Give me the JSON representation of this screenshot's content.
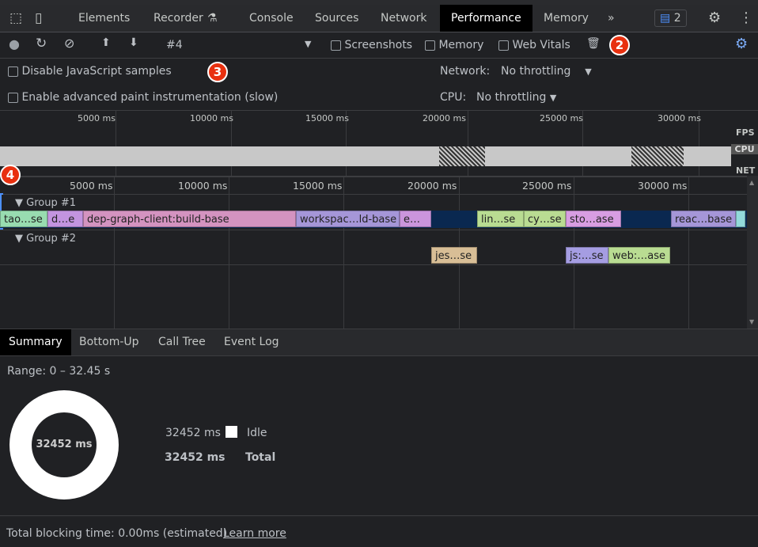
{
  "tabs": [
    "Elements",
    "Recorder",
    "Console",
    "Sources",
    "Network",
    "Performance",
    "Memory"
  ],
  "active_tab": "Performance",
  "issues_count": "2",
  "toolbar": {
    "recording": "#4",
    "screenshots": "Screenshots",
    "memory": "Memory",
    "web_vitals": "Web Vitals"
  },
  "settings": {
    "disable_js": "Disable JavaScript samples",
    "paint": "Enable advanced paint instrumentation (slow)",
    "network_label": "Network:",
    "network_value": "No throttling",
    "cpu_label": "CPU:",
    "cpu_value": "No throttling"
  },
  "badges": [
    "2",
    "3",
    "4"
  ],
  "overview": {
    "ticks": [
      "5000 ms",
      "10000 ms",
      "15000 ms",
      "20000 ms",
      "25000 ms",
      "30000 ms"
    ],
    "fps": "FPS",
    "cpu": "CPU",
    "net": "NET"
  },
  "timeline": {
    "ticks": [
      "5000 ms",
      "10000 ms",
      "15000 ms",
      "20000 ms",
      "25000 ms",
      "30000 ms"
    ],
    "group1": "Group #1",
    "group2": "Group #2",
    "group1_bars": [
      "tao…se",
      "d…e",
      "dep-graph-client:build-base",
      "workspac…ld-base",
      "e…",
      "",
      "lin…se",
      "cy…se",
      "sto…ase",
      "",
      "reac…base",
      ""
    ],
    "group2_bars": [
      "jes…se",
      "js:…se",
      "web:…ase"
    ]
  },
  "bottom_tabs": [
    "Summary",
    "Bottom-Up",
    "Call Tree",
    "Event Log"
  ],
  "summary": {
    "range": "Range: 0 – 32.45 s",
    "donut": "32452 ms",
    "idle_value": "32452 ms",
    "idle_label": "Idle",
    "total_value": "32452 ms",
    "total_label": "Total"
  },
  "footer": {
    "text": "Total blocking time: 0.00ms (estimated)",
    "link": "Learn more"
  }
}
